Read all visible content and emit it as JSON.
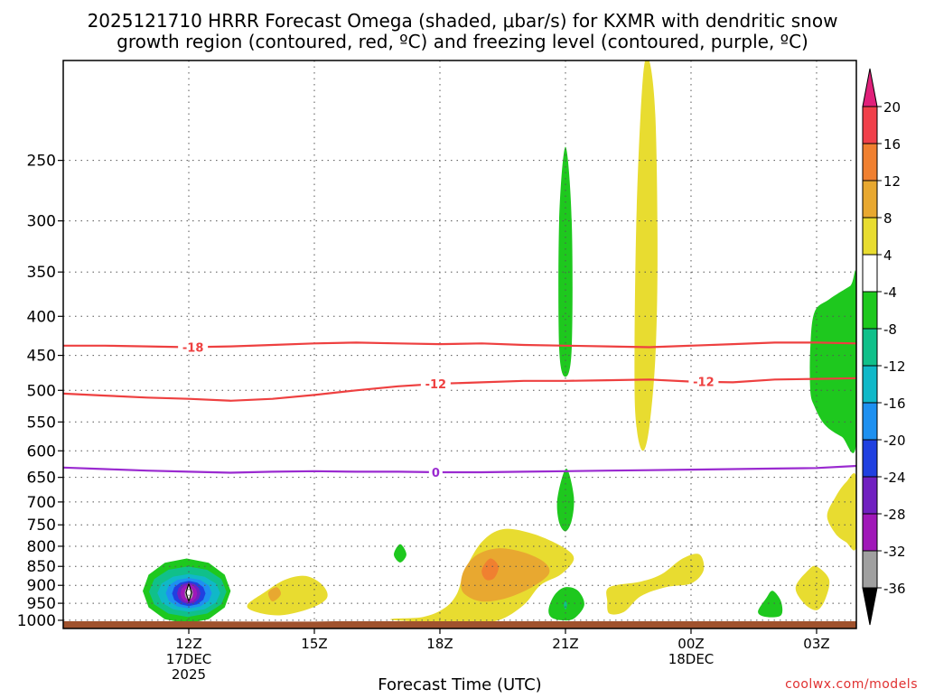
{
  "chart_data": {
    "type": "heatmap",
    "title_lines": [
      "2025121710 HRRR Forecast Omega (shaded, μbar/s) for KXMR with dendritic snow",
      "growth region (contoured, red, ºC) and freezing level (contoured, purple, ºC)"
    ],
    "xlabel": "Forecast Time (UTC)",
    "x_ticks": [
      {
        "hour": 12,
        "lines": [
          "12Z",
          "17DEC",
          "2025"
        ]
      },
      {
        "hour": 15,
        "lines": [
          "15Z"
        ]
      },
      {
        "hour": 18,
        "lines": [
          "18Z"
        ]
      },
      {
        "hour": 21,
        "lines": [
          "21Z"
        ]
      },
      {
        "hour": 24,
        "lines": [
          "00Z",
          "18DEC"
        ]
      },
      {
        "hour": 27,
        "lines": [
          "03Z"
        ]
      }
    ],
    "x_range_hours": [
      9.0,
      27.95
    ],
    "y_range_hpa": [
      1025,
      185
    ],
    "y_ticks": [
      250,
      300,
      350,
      400,
      450,
      500,
      550,
      600,
      650,
      700,
      750,
      800,
      850,
      900,
      950,
      1000
    ],
    "ylabel": "",
    "colorbar": {
      "labels": [
        "20",
        "16",
        "12",
        "8",
        "4",
        "-4",
        "-8",
        "-12",
        "-16",
        "-20",
        "-24",
        "-28",
        "-32",
        "-36"
      ],
      "bins": [
        {
          "range": [
            16,
            20
          ],
          "color": "#f0404a"
        },
        {
          "range": [
            12,
            16
          ],
          "color": "#f08030"
        },
        {
          "range": [
            8,
            12
          ],
          "color": "#e8a830"
        },
        {
          "range": [
            4,
            8
          ],
          "color": "#e8dc30"
        },
        {
          "range": [
            -4,
            4
          ],
          "color": "#ffffff"
        },
        {
          "range": [
            -8,
            -4
          ],
          "color": "#1ec81e"
        },
        {
          "range": [
            -12,
            -8
          ],
          "color": "#10c08a"
        },
        {
          "range": [
            -16,
            -12
          ],
          "color": "#10b8c8"
        },
        {
          "range": [
            -20,
            -16
          ],
          "color": "#1e90f0"
        },
        {
          "range": [
            -24,
            -20
          ],
          "color": "#2040e0"
        },
        {
          "range": [
            -28,
            -24
          ],
          "color": "#7020c0"
        },
        {
          "range": [
            -32,
            -28
          ],
          "color": "#a018b8"
        },
        {
          "range": [
            -36,
            -32
          ],
          "color": "#a0a0a0"
        }
      ],
      "top_arrow_color": "#e0207a",
      "bottom_arrow_color": "#000000"
    },
    "contours": [
      {
        "name": "temp -18",
        "label": "-18",
        "color": "#ee4040",
        "points": [
          [
            9,
            437
          ],
          [
            10,
            437
          ],
          [
            11,
            438
          ],
          [
            12,
            439
          ],
          [
            13,
            438
          ],
          [
            14,
            436
          ],
          [
            15,
            434
          ],
          [
            16,
            433
          ],
          [
            17,
            434
          ],
          [
            18,
            435
          ],
          [
            19,
            434
          ],
          [
            20,
            436
          ],
          [
            21,
            437
          ],
          [
            22,
            438
          ],
          [
            23,
            439
          ],
          [
            24,
            437
          ],
          [
            25,
            435
          ],
          [
            26,
            433
          ],
          [
            27,
            433
          ],
          [
            27.95,
            434
          ]
        ],
        "label_hour": 12.1
      },
      {
        "name": "temp -12",
        "label": "-12",
        "color": "#ee4040",
        "points": [
          [
            9,
            505
          ],
          [
            10,
            508
          ],
          [
            11,
            511
          ],
          [
            12,
            513
          ],
          [
            13,
            516
          ],
          [
            14,
            513
          ],
          [
            15,
            507
          ],
          [
            16,
            500
          ],
          [
            17,
            494
          ],
          [
            18,
            490
          ],
          [
            19,
            488
          ],
          [
            20,
            486
          ],
          [
            21,
            486
          ],
          [
            22,
            485
          ],
          [
            23,
            484
          ],
          [
            24,
            487
          ],
          [
            25,
            488
          ],
          [
            26,
            484
          ],
          [
            27,
            483
          ],
          [
            27.95,
            482
          ]
        ],
        "label_hour": 17.9
      },
      {
        "name": "temp -12 b",
        "label": "-12",
        "color": "#ee4040",
        "points": [],
        "label_hour": 24.3,
        "label_hpa": 487
      },
      {
        "name": "freezing level 0",
        "label": "0",
        "color": "#9a2ad0",
        "points": [
          [
            9,
            631
          ],
          [
            10,
            634
          ],
          [
            11,
            637
          ],
          [
            12,
            639
          ],
          [
            13,
            641
          ],
          [
            14,
            639
          ],
          [
            15,
            638
          ],
          [
            16,
            639
          ],
          [
            17,
            639
          ],
          [
            18,
            640
          ],
          [
            19,
            640
          ],
          [
            20,
            639
          ],
          [
            21,
            638
          ],
          [
            22,
            637
          ],
          [
            23,
            636
          ],
          [
            24,
            635
          ],
          [
            25,
            634
          ],
          [
            26,
            633
          ],
          [
            27,
            632
          ],
          [
            27.95,
            628
          ]
        ],
        "label_hour": 17.9
      }
    ],
    "shaded_regions": [
      {
        "name": "upward omega core 12Z",
        "center": [
          12.0,
          920
        ],
        "shape": "nested",
        "levels": [
          {
            "value": -4,
            "color": "#1ec81e",
            "hours": [
              10.9,
              13.0
            ],
            "hpa": [
              830,
              1010
            ]
          },
          {
            "value": -8,
            "color": "#10c08a",
            "hours": [
              11.05,
              12.9
            ],
            "hpa": [
              850,
              990
            ]
          },
          {
            "value": -12,
            "color": "#10b8c8",
            "hours": [
              11.25,
              12.75
            ],
            "hpa": [
              870,
              975
            ]
          },
          {
            "value": -16,
            "color": "#1e90f0",
            "hours": [
              11.45,
              12.55
            ],
            "hpa": [
              880,
              965
            ]
          },
          {
            "value": -20,
            "color": "#2040e0",
            "hours": [
              11.6,
              12.4
            ],
            "hpa": [
              888,
              958
            ]
          },
          {
            "value": -24,
            "color": "#7020c0",
            "hours": [
              11.72,
              12.28
            ],
            "hpa": [
              893,
              952
            ]
          },
          {
            "value": -28,
            "color": "#a018b8",
            "hours": [
              11.8,
              12.2
            ],
            "hpa": [
              898,
              947
            ]
          },
          {
            "value": -32,
            "color": "#a0a0a0",
            "hours": [
              11.9,
              12.1
            ],
            "hpa": [
              905,
              940
            ]
          }
        ]
      },
      {
        "name": "sinking 14Z",
        "value": 4,
        "color": "#e8dc30",
        "poly": [
          [
            13.4,
            955
          ],
          [
            13.8,
            920
          ],
          [
            14.3,
            885
          ],
          [
            14.8,
            875
          ],
          [
            15.2,
            900
          ],
          [
            15.3,
            935
          ],
          [
            14.9,
            965
          ],
          [
            14.2,
            985
          ],
          [
            13.6,
            975
          ]
        ]
      },
      {
        "name": "sinking 14Z core",
        "value": 8,
        "color": "#e8a830",
        "poly": [
          [
            13.9,
            920
          ],
          [
            14.1,
            905
          ],
          [
            14.2,
            925
          ],
          [
            14.0,
            945
          ]
        ]
      },
      {
        "name": "small green 17Z",
        "value": -4,
        "color": "#1ec81e",
        "poly": [
          [
            16.9,
            820
          ],
          [
            17.05,
            795
          ],
          [
            17.2,
            820
          ],
          [
            17.05,
            840
          ]
        ]
      },
      {
        "name": "sinking 19Z",
        "value": 4,
        "color": "#e8dc30",
        "poly": [
          [
            16.9,
            995
          ],
          [
            17.6,
            990
          ],
          [
            18.1,
            965
          ],
          [
            18.4,
            925
          ],
          [
            18.6,
            860
          ],
          [
            19.0,
            790
          ],
          [
            19.5,
            760
          ],
          [
            20.2,
            770
          ],
          [
            20.9,
            800
          ],
          [
            21.2,
            830
          ],
          [
            20.9,
            870
          ],
          [
            20.4,
            900
          ],
          [
            20.0,
            955
          ],
          [
            19.4,
            1000
          ],
          [
            18.6,
            1010
          ],
          [
            17.7,
            1005
          ],
          [
            16.9,
            1000
          ]
        ]
      },
      {
        "name": "sinking 19Z core",
        "value": 8,
        "color": "#e8a830",
        "poly": [
          [
            18.5,
            895
          ],
          [
            18.6,
            855
          ],
          [
            18.9,
            820
          ],
          [
            19.4,
            805
          ],
          [
            20.0,
            815
          ],
          [
            20.5,
            840
          ],
          [
            20.6,
            870
          ],
          [
            20.2,
            905
          ],
          [
            19.6,
            935
          ],
          [
            19.0,
            945
          ],
          [
            18.6,
            925
          ]
        ]
      },
      {
        "name": "sinking 19Z max",
        "value": 12,
        "color": "#f08030",
        "poly": [
          [
            19.0,
            860
          ],
          [
            19.2,
            830
          ],
          [
            19.4,
            850
          ],
          [
            19.3,
            880
          ],
          [
            19.1,
            885
          ]
        ]
      },
      {
        "name": "green column 21Z",
        "value": -4,
        "color": "#1ec81e",
        "poly": [
          [
            20.85,
            440
          ],
          [
            20.85,
            300
          ],
          [
            21.0,
            240
          ],
          [
            21.15,
            300
          ],
          [
            21.15,
            440
          ],
          [
            21.0,
            480
          ]
        ]
      },
      {
        "name": "green blob 21Z mid",
        "value": -4,
        "color": "#1ec81e",
        "poly": [
          [
            20.8,
            700
          ],
          [
            20.92,
            650
          ],
          [
            21.05,
            635
          ],
          [
            21.2,
            690
          ],
          [
            21.15,
            740
          ],
          [
            21.0,
            765
          ],
          [
            20.85,
            745
          ]
        ]
      },
      {
        "name": "green blob 21Z low",
        "value": -4,
        "color": "#1ec81e",
        "poly": [
          [
            20.6,
            965
          ],
          [
            20.75,
            925
          ],
          [
            21.0,
            905
          ],
          [
            21.3,
            915
          ],
          [
            21.45,
            955
          ],
          [
            21.2,
            995
          ],
          [
            20.9,
            1000
          ],
          [
            20.65,
            990
          ]
        ]
      },
      {
        "name": "teal dot 21Z",
        "value": -8,
        "color": "#10c08a",
        "poly": [
          [
            20.96,
            955
          ],
          [
            21.0,
            942
          ],
          [
            21.04,
            955
          ],
          [
            21.0,
            968
          ]
        ]
      },
      {
        "name": "yellow column 22Z",
        "value": 4,
        "color": "#e8dc30",
        "poly": [
          [
            22.65,
            470
          ],
          [
            22.7,
            290
          ],
          [
            22.85,
            195
          ],
          [
            23.0,
            185
          ],
          [
            23.15,
            220
          ],
          [
            23.2,
            330
          ],
          [
            23.15,
            450
          ],
          [
            23.0,
            560
          ],
          [
            22.85,
            600
          ],
          [
            22.7,
            560
          ]
        ]
      },
      {
        "name": "sinking 23Z band",
        "value": 4,
        "color": "#e8dc30",
        "poly": [
          [
            22.0,
            945
          ],
          [
            22.05,
            905
          ],
          [
            22.8,
            890
          ],
          [
            23.3,
            870
          ],
          [
            23.8,
            830
          ],
          [
            24.2,
            820
          ],
          [
            24.3,
            860
          ],
          [
            24.0,
            895
          ],
          [
            23.4,
            905
          ],
          [
            22.8,
            930
          ],
          [
            22.4,
            975
          ],
          [
            22.05,
            980
          ]
        ]
      },
      {
        "name": "green blob 01Z",
        "value": -4,
        "color": "#1ec81e",
        "poly": [
          [
            25.6,
            975
          ],
          [
            25.8,
            935
          ],
          [
            25.95,
            915
          ],
          [
            26.15,
            945
          ],
          [
            26.15,
            985
          ],
          [
            25.8,
            990
          ]
        ]
      },
      {
        "name": "sinking 03Z low",
        "value": 4,
        "color": "#e8dc30",
        "poly": [
          [
            26.5,
            905
          ],
          [
            26.8,
            860
          ],
          [
            27.0,
            850
          ],
          [
            27.3,
            885
          ],
          [
            27.2,
            940
          ],
          [
            27.0,
            970
          ],
          [
            26.7,
            950
          ]
        ]
      },
      {
        "name": "green edge 03Z",
        "value": -4,
        "color": "#1ec81e",
        "poly": [
          [
            26.85,
            500
          ],
          [
            26.85,
            440
          ],
          [
            26.95,
            395
          ],
          [
            27.3,
            380
          ],
          [
            27.8,
            365
          ],
          [
            27.95,
            360
          ],
          [
            27.95,
            585
          ],
          [
            27.6,
            575
          ],
          [
            27.2,
            555
          ],
          [
            26.95,
            525
          ]
        ]
      },
      {
        "name": "sinking edge 03Z",
        "value": 4,
        "color": "#e8dc30",
        "poly": [
          [
            27.25,
            730
          ],
          [
            27.45,
            690
          ],
          [
            27.7,
            660
          ],
          [
            27.95,
            650
          ],
          [
            27.95,
            800
          ],
          [
            27.7,
            790
          ],
          [
            27.45,
            770
          ]
        ]
      }
    ],
    "terrain_color": "#a0522d",
    "terrain_profile": [
      [
        9,
        1003
      ],
      [
        12,
        1003
      ],
      [
        14,
        1004
      ],
      [
        15,
        1004
      ],
      [
        15.5,
        1003
      ],
      [
        27.95,
        1003
      ]
    ]
  },
  "watermark": "coolwx.com/models"
}
